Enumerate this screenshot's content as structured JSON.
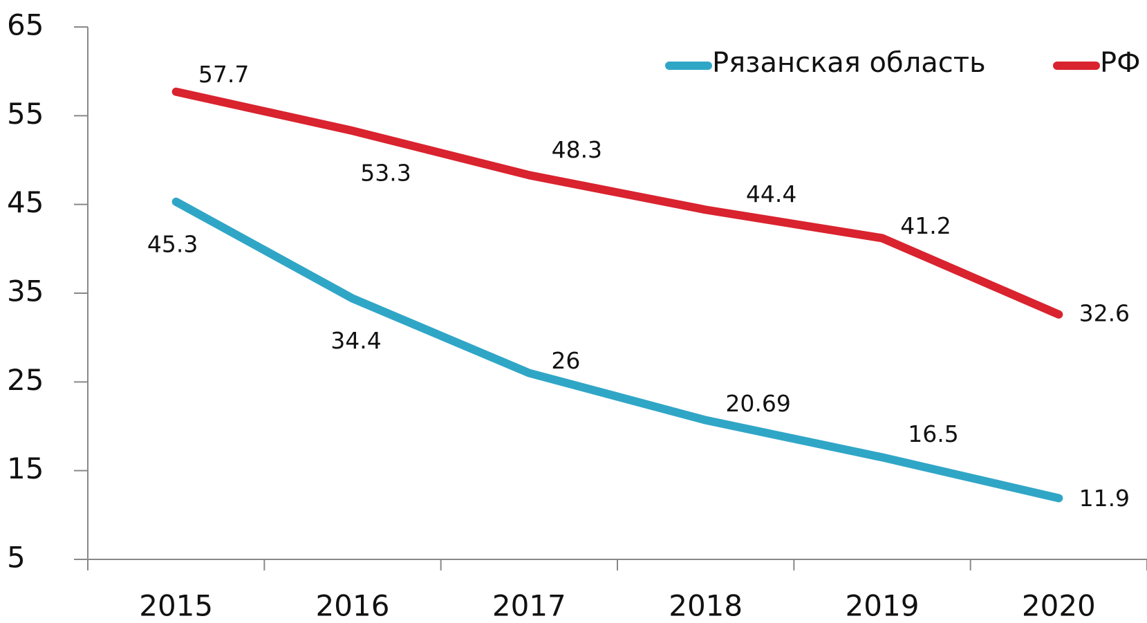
{
  "chart_data": {
    "type": "line",
    "categories": [
      "2015",
      "2016",
      "2017",
      "2018",
      "2019",
      "2020"
    ],
    "series": [
      {
        "name": "Рязанская область",
        "color": "#30a6c6",
        "values": [
          45.3,
          34.4,
          26,
          20.69,
          16.5,
          11.9
        ]
      },
      {
        "name": "РФ",
        "color": "#d9232e",
        "values": [
          57.7,
          53.3,
          48.3,
          44.4,
          41.2,
          32.6
        ]
      }
    ],
    "ylim": [
      5,
      65
    ],
    "yticks": [
      5,
      15,
      25,
      35,
      45,
      55,
      65
    ],
    "legend": "top-right"
  }
}
